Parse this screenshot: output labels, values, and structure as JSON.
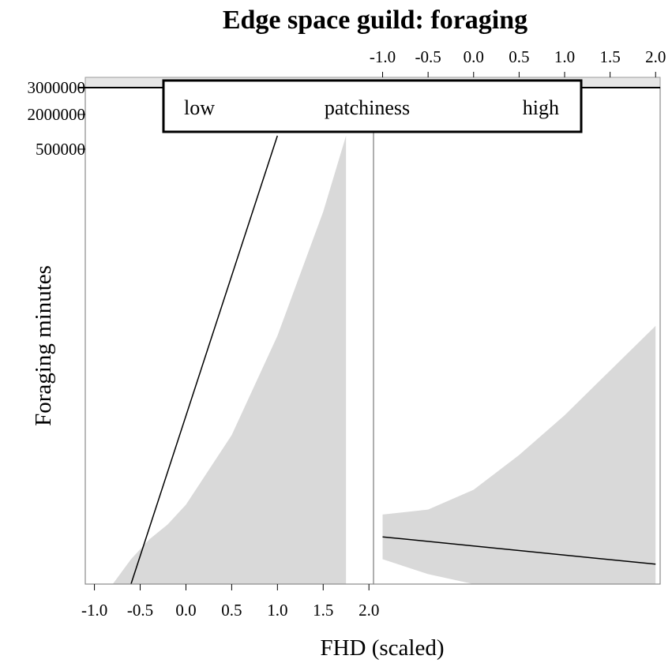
{
  "chart_data": {
    "type": "line",
    "title": "Edge space guild: foraging",
    "xlabel": "FHD (scaled)",
    "ylabel": "Foraging minutes",
    "y_tick_labels": [
      "3000000",
      "2000000",
      "500000"
    ],
    "strip": {
      "left": "low",
      "center": "patchiness",
      "right": "high"
    },
    "xlim": [
      -1.1,
      2.05
    ],
    "x_ticks": [
      -1.0,
      -0.5,
      0.0,
      0.5,
      1.0,
      1.5,
      2.0
    ],
    "x_tick_labels": [
      "-1.0",
      "-0.5",
      "0.0",
      "0.5",
      "1.0",
      "1.5",
      "2.0"
    ],
    "grid": false,
    "panels": [
      {
        "name": "low",
        "x_axis": "bottom",
        "series": [
          {
            "x": [
              -0.6,
              1.0
            ],
            "y": [
              0.0,
              0.903
            ],
            "band_lower": [
              0.0,
              0.5
            ],
            "band_upper": [
              0.0,
              1.0
            ],
            "band": {
              "x": [
                -0.8,
                -0.6,
                -0.4,
                -0.2,
                0.0,
                0.5,
                1.0,
                1.5,
                1.75
              ],
              "lower": [
                0.0,
                -0.05,
                -0.09,
                -0.11,
                -0.12,
                -0.08,
                0.0,
                0.0,
                0.0
              ],
              "upper": [
                0.0,
                0.05,
                0.09,
                0.12,
                0.16,
                0.3,
                0.5,
                0.75,
                0.903
              ]
            }
          }
        ]
      },
      {
        "name": "high",
        "x_axis": "top",
        "series": [
          {
            "x": [
              -1.0,
              2.0
            ],
            "y": [
              0.095,
              0.04
            ],
            "band": {
              "x": [
                -1.0,
                -0.5,
                0.0,
                0.5,
                1.0,
                1.5,
                2.0
              ],
              "lower": [
                0.05,
                0.02,
                0.0,
                0.0,
                0.0,
                0.0,
                0.0
              ],
              "upper": [
                0.14,
                0.15,
                0.19,
                0.26,
                0.34,
                0.43,
                0.52
              ]
            }
          }
        ]
      }
    ]
  }
}
